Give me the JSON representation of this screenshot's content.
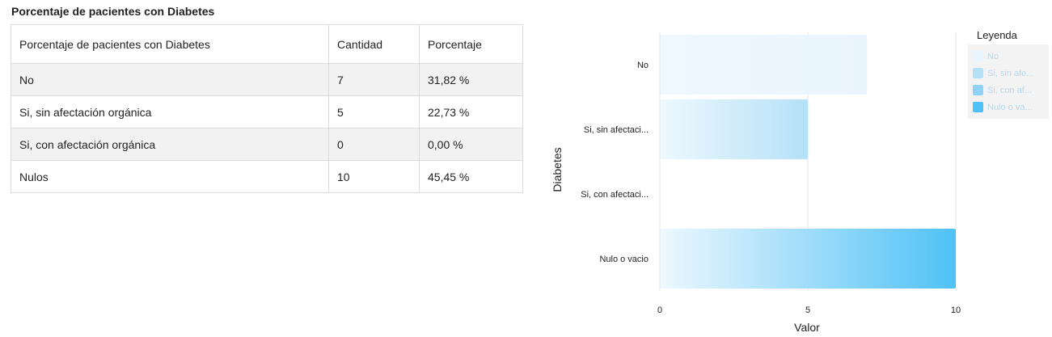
{
  "title": "Porcentaje de pacientes con Diabetes",
  "table": {
    "headers": [
      "Porcentaje de pacientes con Diabetes",
      "Cantidad",
      "Porcentaje"
    ],
    "rows": [
      {
        "categoria": "No",
        "cantidad": "7",
        "porcentaje": "31,82 %"
      },
      {
        "categoria": "Si, sin afectación orgánica",
        "cantidad": "5",
        "porcentaje": "22,73 %"
      },
      {
        "categoria": "Si, con afectación orgánica",
        "cantidad": "0",
        "porcentaje": "0,00 %"
      },
      {
        "categoria": "Nulos",
        "cantidad": "10",
        "porcentaje": "45,45 %"
      }
    ]
  },
  "chart_data": {
    "type": "bar",
    "orientation": "horizontal",
    "categories": [
      "No",
      "Si, sin afectaci...",
      "Si, con afectaci...",
      "Nulo o vacio"
    ],
    "values": [
      7,
      5,
      0,
      10
    ],
    "xlabel": "Valor",
    "ylabel": "Diabetes",
    "xlim": [
      0,
      10
    ],
    "xticks": [
      "0",
      "5",
      "10"
    ],
    "grid": true,
    "bar_colors": [
      "#e9f5fd",
      "#b5e1f7",
      "#8fd2f4",
      "#4fc1f6"
    ],
    "bar_color_start": "#eef8fe",
    "legend": {
      "title": "Leyenda",
      "position": "right",
      "items": [
        "No",
        "Si, sin afe...",
        "Si, con af...",
        "Nulo o va..."
      ]
    }
  }
}
